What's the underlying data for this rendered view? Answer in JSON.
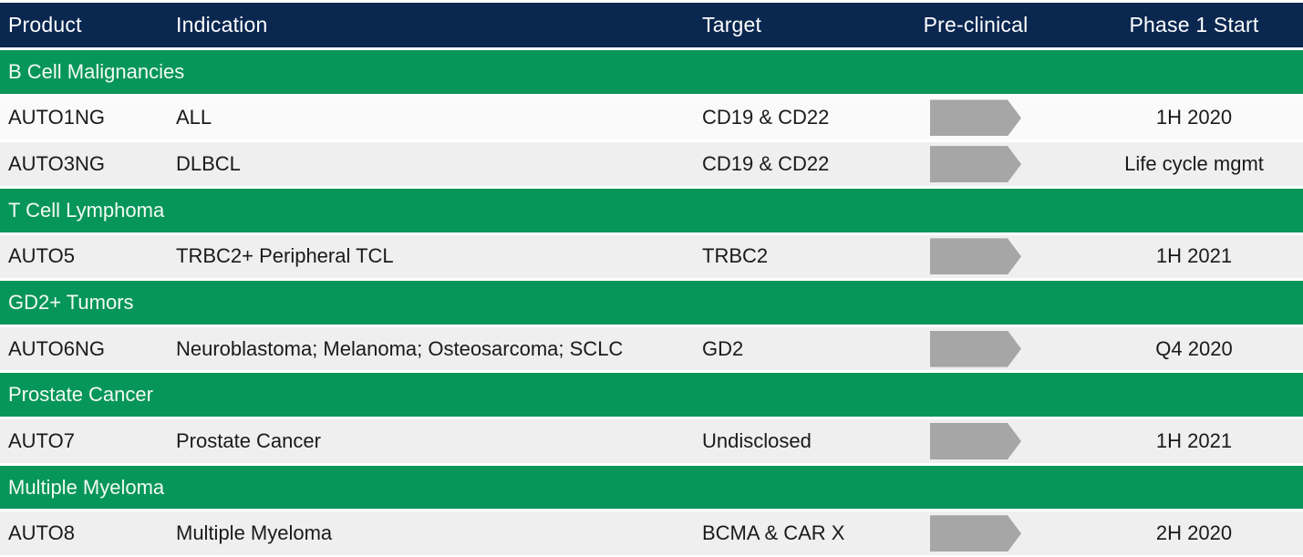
{
  "chart_data": {
    "type": "table",
    "columns": [
      "Product",
      "Indication",
      "Target",
      "Pre-clinical",
      "Phase 1 Start"
    ],
    "sections": [
      {
        "name": "B Cell Malignancies",
        "rows": [
          {
            "product": "AUTO1NG",
            "indication": "ALL",
            "target": "CD19 & CD22",
            "preclinical_stage": "arrow",
            "phase1_start": "1H 2020"
          },
          {
            "product": "AUTO3NG",
            "indication": "DLBCL",
            "target": "CD19 & CD22",
            "preclinical_stage": "arrow",
            "phase1_start": "Life cycle mgmt"
          }
        ]
      },
      {
        "name": "T Cell Lymphoma",
        "rows": [
          {
            "product": "AUTO5",
            "indication": "TRBC2+ Peripheral TCL",
            "target": "TRBC2",
            "preclinical_stage": "arrow",
            "phase1_start": "1H 2021"
          }
        ]
      },
      {
        "name": "GD2+ Tumors",
        "rows": [
          {
            "product": "AUTO6NG",
            "indication": "Neuroblastoma; Melanoma; Osteosarcoma; SCLC",
            "target": "GD2",
            "preclinical_stage": "arrow",
            "phase1_start": "Q4 2020"
          }
        ]
      },
      {
        "name": "Prostate Cancer",
        "rows": [
          {
            "product": "AUTO7",
            "indication": "Prostate Cancer",
            "target": "Undisclosed",
            "preclinical_stage": "arrow",
            "phase1_start": "1H 2021"
          }
        ]
      },
      {
        "name": "Multiple Myeloma",
        "rows": [
          {
            "product": "AUTO8",
            "indication": "Multiple Myeloma",
            "target": "BCMA & CAR X",
            "preclinical_stage": "arrow",
            "phase1_start": "2H 2020"
          }
        ]
      }
    ],
    "layout_hints": {
      "grid": "off",
      "legend": "none",
      "section_header_style": "full-width green band",
      "preclinical_marker": "gray right-pointing pentagon arrow"
    }
  },
  "icons": {
    "preclinical_stage": "gray-right-arrow"
  },
  "colors": {
    "header_bg": "#0A2750",
    "header_text": "#FFFFFF",
    "section_bg": "#079659",
    "section_text": "#F2FAF5",
    "row_bg": "#EFEFEF",
    "first_row_bg": "#FAFAFA",
    "arrow_gray": "#A6A6A6",
    "body_text": "#1A1A1A"
  }
}
